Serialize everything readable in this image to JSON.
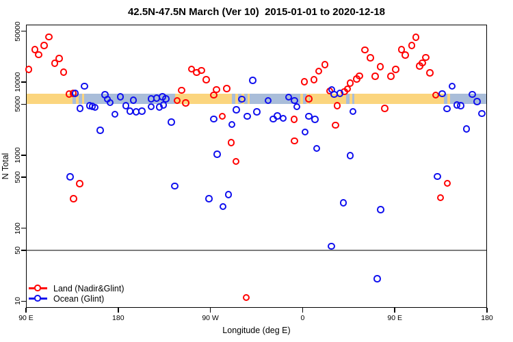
{
  "chart_data": {
    "type": "scatter",
    "title": "42.5N-47.5N March (Ver 10)  2015-01-01 to 2020-12-18",
    "xlabel": "Longitude (deg E)",
    "ylabel": "N Total",
    "y_scale": "log",
    "ylim": [
      10,
      50000
    ],
    "x_axis_span_deg": [
      0,
      450
    ],
    "x_ticks": [
      {
        "deg": 0,
        "label": "90 E"
      },
      {
        "deg": 90,
        "label": "180"
      },
      {
        "deg": 180,
        "label": "90 W"
      },
      {
        "deg": 270,
        "label": "0"
      },
      {
        "deg": 360,
        "label": "90 E"
      },
      {
        "deg": 450,
        "label": "180"
      }
    ],
    "y_ticks": [
      {
        "value": 10,
        "label": "10"
      },
      {
        "value": 50,
        "label": "50"
      },
      {
        "value": 100,
        "label": "100"
      },
      {
        "value": 500,
        "label": "500"
      },
      {
        "value": 1000,
        "label": "1000"
      },
      {
        "value": 5000,
        "label": "5000"
      },
      {
        "value": 10000,
        "label": "10000"
      },
      {
        "value": 50000,
        "label": "50000"
      }
    ],
    "reference_line_n": 50,
    "reference_line_color": "#7d7d7d",
    "land_ocean_band": {
      "n_range": [
        5000,
        7000
      ],
      "land_color": "#FBD57E",
      "ocean_color": "#A9BDD9",
      "segments": [
        {
          "from": 0,
          "to": 42.9,
          "type": "land"
        },
        {
          "from": 42.9,
          "to": 57,
          "type": "mixed"
        },
        {
          "from": 57,
          "to": 145.4,
          "type": "ocean"
        },
        {
          "from": 145.4,
          "to": 198.1,
          "type": "land"
        },
        {
          "from": 198.1,
          "to": 218.1,
          "type": "mixed"
        },
        {
          "from": 218.1,
          "to": 268,
          "type": "ocean"
        },
        {
          "from": 268,
          "to": 277,
          "type": "mixed"
        },
        {
          "from": 277,
          "to": 310,
          "type": "land"
        },
        {
          "from": 310,
          "to": 320.7,
          "type": "mixed"
        },
        {
          "from": 320.7,
          "to": 405,
          "type": "land"
        },
        {
          "from": 405,
          "to": 417,
          "type": "mixed"
        },
        {
          "from": 417,
          "to": 450,
          "type": "ocean"
        }
      ]
    },
    "series": [
      {
        "name": "Land (Nadir&Glint)",
        "color": "#FF0000",
        "points": [
          [
            3.3,
            14700
          ],
          [
            9.0,
            27500
          ],
          [
            12.9,
            23400
          ],
          [
            18.2,
            31300
          ],
          [
            22.9,
            41000
          ],
          [
            28.5,
            17900
          ],
          [
            32.9,
            20900
          ],
          [
            37.3,
            13600
          ],
          [
            42.5,
            6800
          ],
          [
            46.5,
            6950
          ],
          [
            46.9,
            250
          ],
          [
            52.9,
            400
          ],
          [
            148.0,
            5500
          ],
          [
            152.5,
            7600
          ],
          [
            156.2,
            5100
          ],
          [
            162.1,
            14900
          ],
          [
            166.9,
            13400
          ],
          [
            171.8,
            14300
          ],
          [
            176.5,
            10700
          ],
          [
            183.6,
            6550
          ],
          [
            186.3,
            7800
          ],
          [
            192.1,
            3350
          ],
          [
            196.5,
            8100
          ],
          [
            200.9,
            1470
          ],
          [
            205.4,
            810
          ],
          [
            215.4,
            11
          ],
          [
            262.3,
            3050
          ],
          [
            262.5,
            1550
          ],
          [
            272.1,
            9950
          ],
          [
            276.5,
            5800
          ],
          [
            281.4,
            10700
          ],
          [
            286.3,
            14000
          ],
          [
            292.1,
            17100
          ],
          [
            297.0,
            7450
          ],
          [
            302.5,
            2550
          ],
          [
            304.4,
            4700
          ],
          [
            311.4,
            7350
          ],
          [
            314.3,
            8000
          ],
          [
            316.9,
            9550
          ],
          [
            323.2,
            10900
          ],
          [
            325.9,
            12000
          ],
          [
            331.4,
            27200
          ],
          [
            336.6,
            21300
          ],
          [
            341.4,
            11900
          ],
          [
            346.3,
            16100
          ],
          [
            350.8,
            4300
          ],
          [
            356.6,
            11900
          ],
          [
            361.5,
            14800
          ],
          [
            367.0,
            27700
          ],
          [
            370.8,
            23100
          ],
          [
            377.0,
            31300
          ],
          [
            381.0,
            40600
          ],
          [
            384.8,
            16400
          ],
          [
            387.4,
            18100
          ],
          [
            390.8,
            21600
          ],
          [
            394.8,
            13200
          ],
          [
            400.4,
            6550
          ],
          [
            405.0,
            257
          ],
          [
            411.7,
            405
          ]
        ]
      },
      {
        "name": "Ocean (Glint)",
        "color": "#0F0FEE",
        "points": [
          [
            43.5,
            500
          ],
          [
            48.7,
            6950
          ],
          [
            53.1,
            4300
          ],
          [
            57.4,
            8700
          ],
          [
            62.5,
            4700
          ],
          [
            65.2,
            4600
          ],
          [
            68.0,
            4450
          ],
          [
            72.9,
            2150
          ],
          [
            77.6,
            6650
          ],
          [
            79.8,
            5750
          ],
          [
            82.7,
            5200
          ],
          [
            87.4,
            3600
          ],
          [
            92.5,
            6250
          ],
          [
            98.0,
            4700
          ],
          [
            102.0,
            3950
          ],
          [
            105.2,
            5600
          ],
          [
            108.0,
            3870
          ],
          [
            113.6,
            3950
          ],
          [
            122.5,
            5800
          ],
          [
            122.5,
            4550
          ],
          [
            128.0,
            5950
          ],
          [
            130.5,
            4500
          ],
          [
            133.6,
            6250
          ],
          [
            134.5,
            4800
          ],
          [
            137.0,
            5800
          ],
          [
            142.5,
            2800
          ],
          [
            145.8,
            373
          ],
          [
            179.2,
            250
          ],
          [
            183.6,
            3100
          ],
          [
            187.0,
            1020
          ],
          [
            192.9,
            195
          ],
          [
            198.1,
            285
          ],
          [
            201.4,
            2600
          ],
          [
            205.9,
            4150
          ],
          [
            211.0,
            5750
          ],
          [
            216.5,
            3350
          ],
          [
            221.9,
            10400
          ],
          [
            225.9,
            3870
          ],
          [
            236.9,
            5500
          ],
          [
            241.9,
            3100
          ],
          [
            245.9,
            3400
          ],
          [
            251.4,
            3150
          ],
          [
            256.9,
            6150
          ],
          [
            262.5,
            5550
          ],
          [
            265.0,
            4550
          ],
          [
            272.9,
            2050
          ],
          [
            276.5,
            3350
          ],
          [
            282.5,
            3050
          ],
          [
            284.3,
            1220
          ],
          [
            298.6,
            56
          ],
          [
            298.8,
            7800
          ],
          [
            301.4,
            6700
          ],
          [
            306.8,
            6900
          ],
          [
            310.1,
            220
          ],
          [
            317.0,
            970
          ],
          [
            319.6,
            3900
          ],
          [
            343.2,
            20
          ],
          [
            346.7,
            176
          ],
          [
            402.1,
            505
          ],
          [
            406.6,
            6850
          ],
          [
            411.5,
            4250
          ],
          [
            416.3,
            8650
          ],
          [
            421.0,
            4800
          ],
          [
            424.8,
            4700
          ],
          [
            430.3,
            2250
          ],
          [
            436.0,
            6700
          ],
          [
            440.8,
            5350
          ],
          [
            445.5,
            3650
          ]
        ]
      }
    ],
    "legend_position": "bottom-left-inside"
  }
}
